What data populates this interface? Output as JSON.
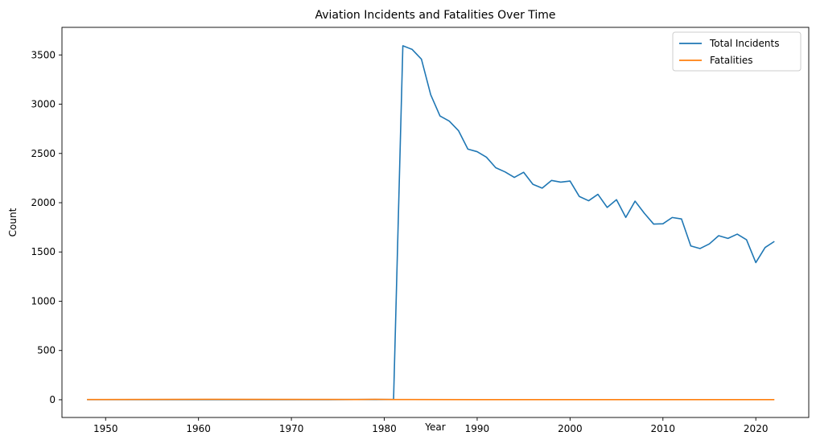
{
  "chart_data": {
    "type": "line",
    "title": "Aviation Incidents and Fatalities Over Time",
    "xlabel": "Year",
    "ylabel": "Count",
    "xlim": [
      1945.3,
      2025.7
    ],
    "ylim": [
      -180,
      3780
    ],
    "xticks": [
      1950,
      1960,
      1970,
      1980,
      1990,
      2000,
      2010,
      2020
    ],
    "yticks": [
      0,
      500,
      1000,
      1500,
      2000,
      2500,
      3000,
      3500
    ],
    "grid": false,
    "legend": "top-right",
    "series": [
      {
        "name": "Total Incidents",
        "color": "#1f77b4",
        "points": [
          [
            1948,
            1
          ],
          [
            1962,
            1
          ],
          [
            1974,
            1
          ],
          [
            1977,
            2
          ],
          [
            1979,
            2
          ],
          [
            1981,
            3
          ],
          [
            1982,
            3593
          ],
          [
            1983,
            3556
          ],
          [
            1984,
            3457
          ],
          [
            1985,
            3096
          ],
          [
            1986,
            2880
          ],
          [
            1987,
            2828
          ],
          [
            1988,
            2730
          ],
          [
            1989,
            2544
          ],
          [
            1990,
            2518
          ],
          [
            1991,
            2462
          ],
          [
            1992,
            2355
          ],
          [
            1993,
            2313
          ],
          [
            1994,
            2257
          ],
          [
            1995,
            2309
          ],
          [
            1996,
            2187
          ],
          [
            1997,
            2148
          ],
          [
            1998,
            2226
          ],
          [
            1999,
            2209
          ],
          [
            2000,
            2220
          ],
          [
            2001,
            2063
          ],
          [
            2002,
            2020
          ],
          [
            2003,
            2085
          ],
          [
            2004,
            1952
          ],
          [
            2005,
            2031
          ],
          [
            2006,
            1851
          ],
          [
            2007,
            2016
          ],
          [
            2008,
            1893
          ],
          [
            2009,
            1783
          ],
          [
            2010,
            1786
          ],
          [
            2011,
            1850
          ],
          [
            2012,
            1835
          ],
          [
            2013,
            1561
          ],
          [
            2014,
            1535
          ],
          [
            2015,
            1582
          ],
          [
            2016,
            1665
          ],
          [
            2017,
            1638
          ],
          [
            2018,
            1681
          ],
          [
            2019,
            1624
          ],
          [
            2020,
            1392
          ],
          [
            2021,
            1545
          ],
          [
            2022,
            1607
          ]
        ]
      },
      {
        "name": "Fatalities",
        "color": "#ff7f0e",
        "points": [
          [
            1948,
            2
          ],
          [
            1962,
            4
          ],
          [
            1974,
            3
          ],
          [
            1977,
            2
          ],
          [
            1979,
            4
          ],
          [
            1981,
            2
          ],
          [
            1982,
            2
          ],
          [
            1990,
            1
          ],
          [
            2000,
            1
          ],
          [
            2010,
            1
          ],
          [
            2020,
            1
          ],
          [
            2022,
            1
          ]
        ]
      }
    ]
  }
}
